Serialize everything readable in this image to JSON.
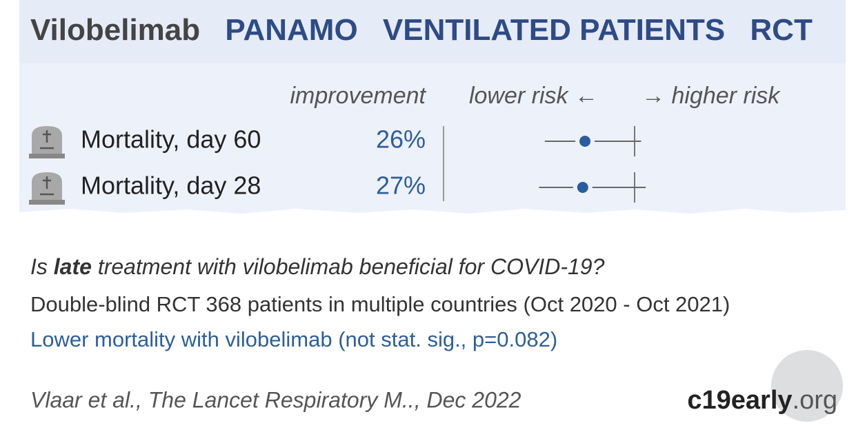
{
  "header": {
    "drug": "Vilobelimab",
    "trial": "PANAMO",
    "population": "VENTILATED PATIENTS",
    "design": "RCT"
  },
  "columns": {
    "improvement": "improvement",
    "lower_risk": "lower risk ←",
    "higher_risk": "→ higher risk"
  },
  "outcomes": [
    {
      "label": "Mortality, day 60",
      "improvement": 26,
      "improvement_label": "26%",
      "ci_low": 0.58,
      "ci_high": 1.04
    },
    {
      "label": "Mortality, day 28",
      "improvement": 27,
      "improvement_label": "27%",
      "ci_low": 0.56,
      "ci_high": 1.07
    }
  ],
  "summary": {
    "question": [
      "Is ",
      "late",
      " treatment with vilobelimab beneficial for COVID-19?"
    ],
    "design": "Double-blind RCT 368 patients in multiple countries (Oct 2020 - Oct 2021)",
    "result": "Lower mortality with vilobelimab (not stat. sig., p=0.082)"
  },
  "footer": {
    "citation": "Vlaar et al., The Lancet Respiratory M.., Dec 2022",
    "site": "c19early",
    "site_tld": ".org"
  }
}
